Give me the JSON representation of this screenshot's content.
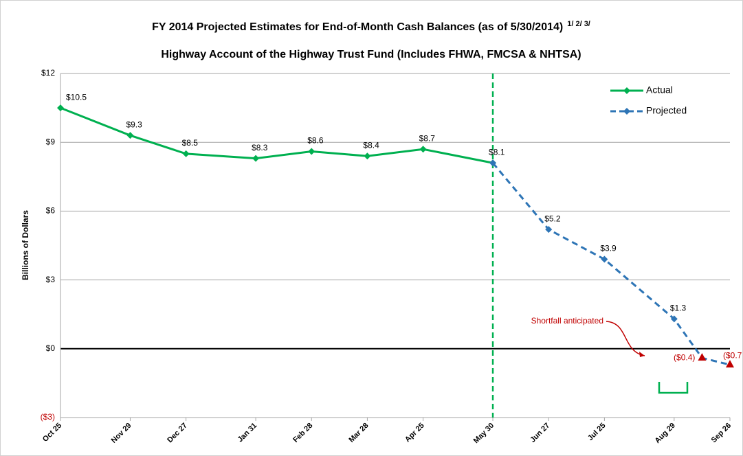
{
  "chart_data": {
    "type": "line",
    "title": "FY 2014 Projected Estimates for End-of-Month Cash Balances (as of 5/30/2014)",
    "title_note": "1/ 2/ 3/",
    "subtitle": "Highway Account of the Highway Trust Fund (Includes FHWA, FMCSA & NHTSA)",
    "y_label": "Billions of Dollars",
    "annotation": "Shortfall anticipated",
    "categories": [
      "Oct 25",
      "Nov 29",
      "Dec 27",
      "Jan 31",
      "Feb 28",
      "Mar 28",
      "Apr 25",
      "May 30",
      "Jun 27",
      "Jul 25",
      "Aug 29",
      null,
      "Sep 26"
    ],
    "series": [
      {
        "name": "Actual",
        "color": "#00b050",
        "dashed": false,
        "values": [
          10.5,
          9.3,
          8.5,
          8.3,
          8.6,
          8.4,
          8.7,
          8.1,
          null,
          null,
          null,
          null,
          null
        ],
        "value_labels": [
          "$10.5",
          "$9.3",
          "$8.5",
          "$8.3",
          "$8.6",
          "$8.4",
          "$8.7",
          "$8.1",
          null,
          null,
          null,
          null,
          null
        ]
      },
      {
        "name": "Projected",
        "color": "#2e75b6",
        "dashed": true,
        "values": [
          null,
          null,
          null,
          null,
          null,
          null,
          null,
          8.1,
          5.2,
          3.9,
          1.3,
          -0.4,
          -0.7
        ],
        "value_labels": [
          null,
          null,
          null,
          null,
          null,
          null,
          null,
          null,
          "$5.2",
          "$3.9",
          "$1.3",
          "($0.4)",
          "($0.7"
        ]
      }
    ],
    "shortfall_color": "#c00000",
    "divider_at": "May 30",
    "ylim": [
      -3,
      12
    ],
    "yticks": [
      {
        "value": -3,
        "label": "($3)"
      },
      {
        "value": 0,
        "label": "$0"
      },
      {
        "value": 3,
        "label": "$3"
      },
      {
        "value": 6,
        "label": "$6"
      },
      {
        "value": 9,
        "label": "$9"
      },
      {
        "value": 12,
        "label": "$12"
      }
    ],
    "grid": true,
    "legend": "top-right"
  }
}
